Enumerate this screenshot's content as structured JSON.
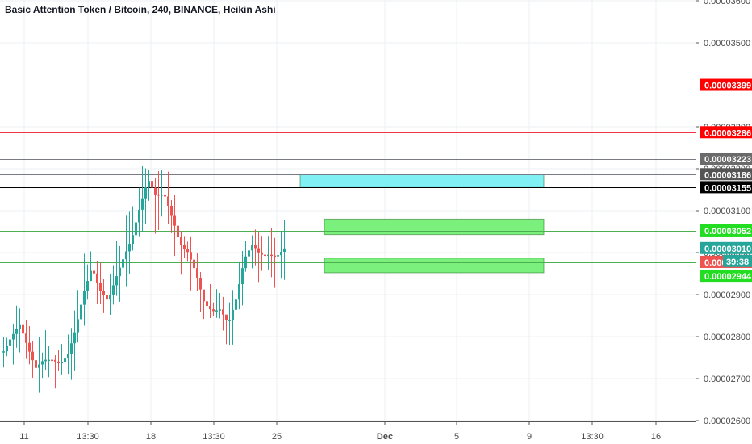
{
  "chart_title": "Basic Attention Token / Bitcoin, 240, BINANCE, Heikin Ashi",
  "colors": {
    "up": "#26a69a",
    "down": "#ef5350",
    "grid": "#eceff1",
    "axis_line": "#555555",
    "zone_cyan": "#80f0f5",
    "zone_green": "#7cf07c"
  },
  "chart_data": {
    "type": "candlestick",
    "style": "Heikin Ashi",
    "symbol": "Basic Attention Token / Bitcoin",
    "interval": "240",
    "exchange": "BINANCE",
    "ylim": [
      2.6e-05,
      3.61e-05
    ],
    "y_ticks": [
      "0.00002600",
      "0.00002700",
      "0.00002800",
      "0.00002900",
      "0.00003000",
      "0.00003100",
      "0.00003200",
      "0.00003300",
      "0.00003500",
      "0.00003600"
    ],
    "x_ticks": [
      "11",
      "13:30",
      "18",
      "13:30",
      "25",
      "Dec",
      "5",
      "9",
      "13:30",
      "16"
    ],
    "horizontal_lines": [
      {
        "value": 3.399e-05,
        "label": "0.00003399",
        "color": "#f23645",
        "label_bg": "#ff0000",
        "label_color": "#ffffff"
      },
      {
        "value": 3.286e-05,
        "label": "0.00003286",
        "color": "#f23645",
        "label_bg": "#ff0000",
        "label_color": "#ffffff"
      },
      {
        "value": 3.223e-05,
        "label": "0.00003223",
        "color": "#787b86",
        "label_bg": "#6b6b6b",
        "label_color": "#ffffff"
      },
      {
        "value": 3.186e-05,
        "label": "0.00003186",
        "color": "#787b86",
        "label_bg": "#555555",
        "label_color": "#ffffff"
      },
      {
        "value": 3.155e-05,
        "label": "0.00003155",
        "color": "#000000",
        "label_bg": "#000000",
        "label_color": "#ffffff"
      },
      {
        "value": 3.052e-05,
        "label": "0.00003052",
        "color": "#4caf50",
        "label_bg": "#22dd22",
        "label_color": "#ffffff"
      },
      {
        "value": 3.01e-05,
        "label": "0.00003010",
        "color": "#26a69a",
        "label_bg": "#26a69a",
        "label_color": "#ffffff",
        "dotted": true
      },
      {
        "value": 2.977e-05,
        "label": "0.00002977",
        "color": "#4caf50",
        "label_bg": "#ef5350",
        "label_color": "#ffffff"
      },
      {
        "value": 2.944e-05,
        "label": "0.00002944",
        "color": "#4caf50",
        "label_bg": "#22dd22",
        "label_color": "#ffffff",
        "no_line": true
      }
    ],
    "countdown": "39:38",
    "zones": [
      {
        "name": "cyan-zone",
        "x_from": 372,
        "x_to": 674,
        "y_top": 3.186e-05,
        "y_bottom": 3.155e-05,
        "color": "#80f0f5"
      },
      {
        "name": "green-zone-upper",
        "x_from": 402,
        "x_to": 674,
        "y_top": 3.08e-05,
        "y_bottom": 3.043e-05,
        "color": "#7cf07c"
      },
      {
        "name": "green-zone-lower",
        "x_from": 402,
        "x_to": 674,
        "y_top": 2.987e-05,
        "y_bottom": 2.952e-05,
        "color": "#7cf07c"
      }
    ],
    "anchors": [
      [
        2.77e-05,
        2.76e-05
      ],
      [
        2.82e-05,
        2.78e-05
      ],
      [
        2.85e-05,
        2.81e-05
      ],
      [
        2.8e-05,
        2.75e-05
      ],
      [
        2.73e-05,
        2.72e-05
      ],
      [
        2.76e-05,
        2.73e-05
      ],
      [
        2.75e-05,
        2.74e-05
      ],
      [
        2.74e-05,
        2.73e-05
      ],
      [
        2.78e-05,
        2.73e-05
      ],
      [
        2.86e-05,
        2.78e-05
      ],
      [
        2.95e-05,
        2.86e-05
      ],
      [
        2.98e-05,
        2.95e-05
      ],
      [
        2.92e-05,
        2.9e-05
      ],
      [
        2.9e-05,
        2.87e-05
      ],
      [
        2.98e-05,
        2.9e-05
      ],
      [
        3.02e-05,
        2.96e-05
      ],
      [
        3.07e-05,
        3e-05
      ],
      [
        3.15e-05,
        3.07e-05
      ],
      [
        3.2e-05,
        3.15e-05
      ],
      [
        3.17e-05,
        3.1e-05
      ],
      [
        3.16e-05,
        3.12e-05
      ],
      [
        3.12e-05,
        3.05e-05
      ],
      [
        3.04e-05,
        3e-05
      ],
      [
        3.02e-05,
        2.98e-05
      ],
      [
        2.98e-05,
        2.92e-05
      ],
      [
        2.9e-05,
        2.86e-05
      ],
      [
        2.87e-05,
        2.85e-05
      ],
      [
        2.88e-05,
        2.85e-05
      ],
      [
        2.84e-05,
        2.82e-05
      ],
      [
        2.93e-05,
        2.85e-05
      ],
      [
        3.02e-05,
        2.95e-05
      ],
      [
        3.04e-05,
        3e-05
      ],
      [
        3.01e-05,
        2.98e-05
      ],
      [
        3e-05,
        2.99e-05
      ],
      [
        3.01e-05,
        2.97e-05
      ],
      [
        3.03e-05,
        2.99e-05
      ]
    ]
  }
}
